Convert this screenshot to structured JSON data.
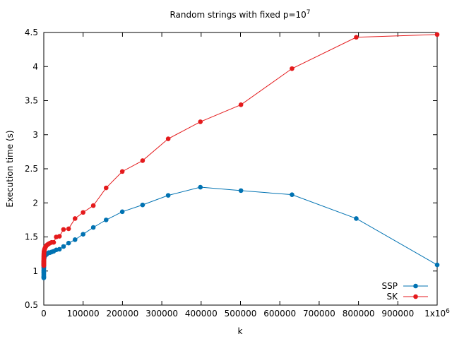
{
  "chart_data": {
    "type": "line",
    "title": "Random strings with fixed p=10",
    "title_sup": "7",
    "xlabel": "k",
    "ylabel": "Execution time (s)",
    "xlim": [
      0,
      1000000
    ],
    "ylim": [
      0.5,
      4.5
    ],
    "x_ticks": [
      0,
      100000,
      200000,
      300000,
      400000,
      500000,
      600000,
      700000,
      800000,
      900000,
      1000000
    ],
    "x_tick_labels": [
      "0",
      "100000",
      "200000",
      "300000",
      "400000",
      "500000",
      "600000",
      "700000",
      "800000",
      "900000",
      "1x10"
    ],
    "x_last_tick_sup": "6",
    "y_ticks": [
      0.5,
      1,
      1.5,
      2,
      2.5,
      3,
      3.5,
      4,
      4.5
    ],
    "y_tick_labels": [
      "0.5",
      "1",
      "1.5",
      "2",
      "2.5",
      "3",
      "3.5",
      "4",
      "4.5"
    ],
    "grid": false,
    "legend_position": "bottom-right",
    "series": [
      {
        "name": "SSP",
        "color": "#0072b2",
        "x": [
          1,
          2,
          3,
          4,
          5,
          6,
          8,
          10,
          13,
          16,
          20,
          25,
          32,
          40,
          50,
          63,
          79,
          100,
          126,
          158,
          200,
          251,
          316,
          398,
          501,
          631,
          794,
          1000,
          1259,
          1585,
          1995,
          2512,
          3162,
          3981,
          5012,
          6310,
          7943,
          10000,
          12589,
          15849,
          19953,
          25119,
          31623,
          39811,
          50119,
          63096,
          79433,
          100000,
          125893,
          158489,
          199526,
          251189,
          316228,
          398107,
          501187,
          630957,
          794328,
          1000000
        ],
        "y": [
          0.9,
          0.9,
          0.91,
          0.92,
          0.93,
          0.95,
          0.97,
          0.98,
          1.0,
          1.0,
          1.02,
          1.04,
          1.05,
          1.06,
          1.07,
          1.08,
          1.09,
          1.1,
          1.11,
          1.12,
          1.13,
          1.14,
          1.15,
          1.16,
          1.17,
          1.18,
          1.19,
          1.2,
          1.2,
          1.21,
          1.22,
          1.22,
          1.23,
          1.23,
          1.24,
          1.24,
          1.25,
          1.26,
          1.27,
          1.27,
          1.28,
          1.29,
          1.31,
          1.32,
          1.36,
          1.41,
          1.46,
          1.54,
          1.64,
          1.75,
          1.87,
          1.97,
          2.11,
          2.23,
          2.18,
          2.12,
          1.77,
          1.09
        ]
      },
      {
        "name": "SK",
        "color": "#e41a1c",
        "x": [
          1,
          2,
          3,
          4,
          5,
          6,
          8,
          10,
          13,
          16,
          20,
          25,
          32,
          40,
          50,
          63,
          79,
          100,
          126,
          158,
          200,
          251,
          316,
          398,
          501,
          631,
          794,
          1000,
          1259,
          1585,
          1995,
          2512,
          3162,
          3981,
          5012,
          6310,
          7943,
          10000,
          12589,
          15849,
          19953,
          25119,
          31623,
          39811,
          50119,
          63096,
          79433,
          100000,
          125893,
          158489,
          199526,
          251189,
          316228,
          398107,
          501187,
          630957,
          794328,
          1000000
        ],
        "y": [
          1.08,
          1.08,
          1.09,
          1.1,
          1.1,
          1.11,
          1.12,
          1.13,
          1.14,
          1.14,
          1.15,
          1.15,
          1.16,
          1.17,
          1.18,
          1.19,
          1.2,
          1.21,
          1.22,
          1.22,
          1.23,
          1.24,
          1.25,
          1.26,
          1.27,
          1.28,
          1.29,
          1.29,
          1.3,
          1.31,
          1.32,
          1.33,
          1.34,
          1.35,
          1.36,
          1.37,
          1.38,
          1.39,
          1.4,
          1.41,
          1.42,
          1.42,
          1.5,
          1.51,
          1.61,
          1.62,
          1.77,
          1.86,
          1.96,
          2.22,
          2.46,
          2.62,
          2.94,
          3.19,
          3.44,
          3.97,
          4.43,
          4.47
        ]
      }
    ]
  }
}
